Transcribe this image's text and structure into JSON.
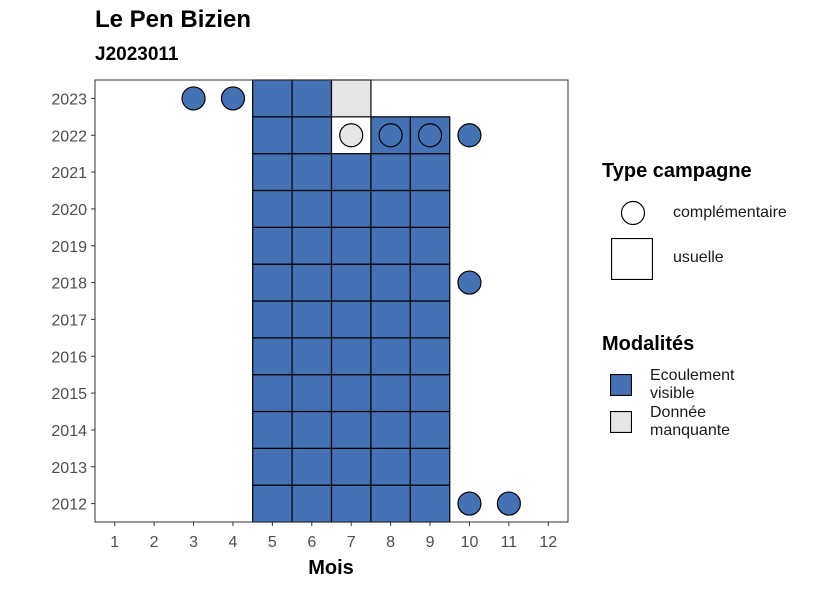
{
  "chart_data": {
    "type": "heatmap",
    "title": "Le Pen Bizien",
    "subtitle": "J2023011",
    "xlabel": "Mois",
    "ylabel": "",
    "x_ticks": [
      1,
      2,
      3,
      4,
      5,
      6,
      7,
      8,
      9,
      10,
      11,
      12
    ],
    "y_ticks": [
      2012,
      2013,
      2014,
      2015,
      2016,
      2017,
      2018,
      2019,
      2020,
      2021,
      2022,
      2023
    ],
    "xlim": [
      0.5,
      12.5
    ],
    "ylim": [
      2011.5,
      2023.5
    ],
    "grid": false,
    "modalities": {
      "ecoulement": "Ecoulement visible",
      "manquante": "Donnée manquante"
    },
    "colors": {
      "ecoulement": "#4472b4",
      "manquante": "#e6e6e6"
    },
    "usuelle": [
      {
        "year": 2012,
        "months": [
          5,
          6,
          7,
          8,
          9
        ],
        "modalite": "ecoulement"
      },
      {
        "year": 2013,
        "months": [
          5,
          6,
          7,
          8,
          9
        ],
        "modalite": "ecoulement"
      },
      {
        "year": 2014,
        "months": [
          5,
          6,
          7,
          8,
          9
        ],
        "modalite": "ecoulement"
      },
      {
        "year": 2015,
        "months": [
          5,
          6,
          7,
          8,
          9
        ],
        "modalite": "ecoulement"
      },
      {
        "year": 2016,
        "months": [
          5,
          6,
          7,
          8,
          9
        ],
        "modalite": "ecoulement"
      },
      {
        "year": 2017,
        "months": [
          5,
          6,
          7,
          8,
          9
        ],
        "modalite": "ecoulement"
      },
      {
        "year": 2018,
        "months": [
          5,
          6,
          7,
          8,
          9
        ],
        "modalite": "ecoulement"
      },
      {
        "year": 2019,
        "months": [
          5,
          6,
          7,
          8,
          9
        ],
        "modalite": "ecoulement"
      },
      {
        "year": 2020,
        "months": [
          5,
          6,
          7,
          8,
          9
        ],
        "modalite": "ecoulement"
      },
      {
        "year": 2021,
        "months": [
          5,
          6,
          7,
          8,
          9
        ],
        "modalite": "ecoulement"
      },
      {
        "year": 2022,
        "months": [
          5,
          6,
          8,
          9
        ],
        "modalite": "ecoulement"
      },
      {
        "year": 2023,
        "months": [
          5,
          6
        ],
        "modalite": "ecoulement"
      },
      {
        "year": 2023,
        "months": [
          7
        ],
        "modalite": "manquante"
      }
    ],
    "complementaire": [
      {
        "year": 2023,
        "month": 3,
        "modalite": "ecoulement"
      },
      {
        "year": 2023,
        "month": 4,
        "modalite": "ecoulement"
      },
      {
        "year": 2022,
        "month": 7,
        "modalite": "manquante"
      },
      {
        "year": 2022,
        "month": 8,
        "modalite": "ecoulement"
      },
      {
        "year": 2022,
        "month": 9,
        "modalite": "ecoulement"
      },
      {
        "year": 2022,
        "month": 10,
        "modalite": "ecoulement"
      },
      {
        "year": 2018,
        "month": 10,
        "modalite": "ecoulement"
      },
      {
        "year": 2012,
        "month": 10,
        "modalite": "ecoulement"
      },
      {
        "year": 2012,
        "month": 11,
        "modalite": "ecoulement"
      }
    ]
  },
  "legend": {
    "type_title": "Type campagne",
    "complementaire": "complémentaire",
    "usuelle": "usuelle",
    "modalites_title": "Modalités",
    "ecoulement_line1": "Ecoulement",
    "ecoulement_line2": "visible",
    "manquante_line1": "Donnée",
    "manquante_line2": "manquante"
  }
}
